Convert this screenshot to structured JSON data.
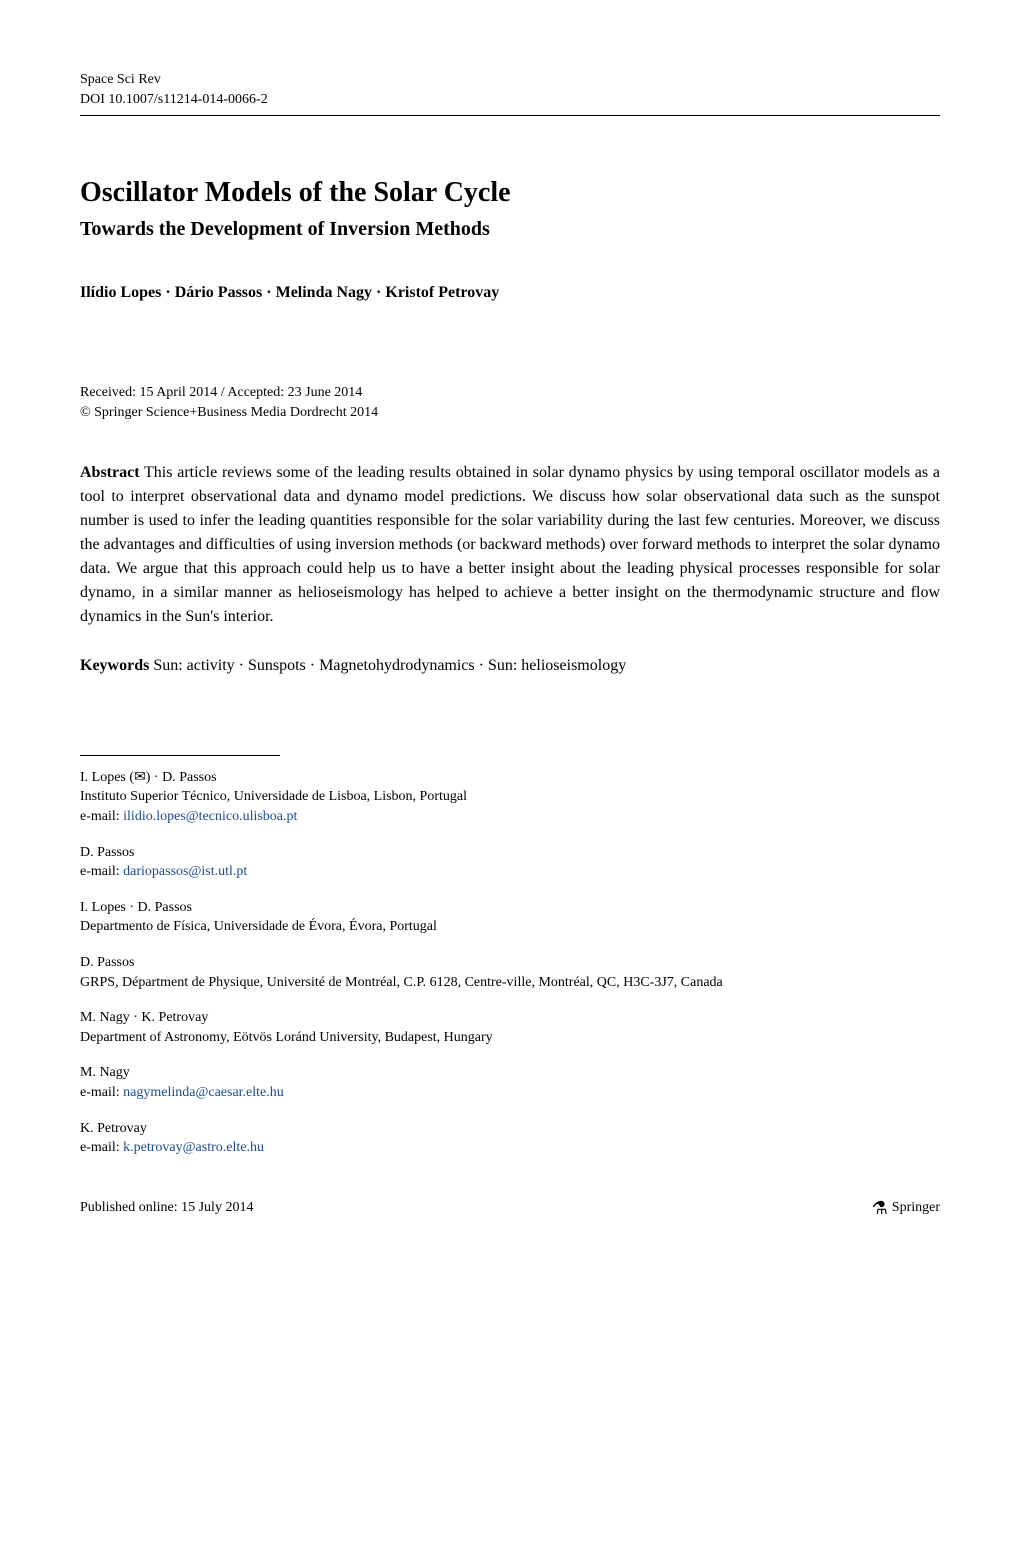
{
  "header": {
    "journal": "Space Sci Rev",
    "doi": "DOI 10.1007/s11214-014-0066-2"
  },
  "title": "Oscillator Models of the Solar Cycle",
  "subtitle": "Towards the Development of Inversion Methods",
  "authors": "Ilídio Lopes · Dário Passos · Melinda Nagy · Kristof Petrovay",
  "dates": "Received: 15 April 2014 / Accepted: 23 June 2014",
  "copyright": "© Springer Science+Business Media Dordrecht 2014",
  "abstract_label": "Abstract",
  "abstract": "This article reviews some of the leading results obtained in solar dynamo physics by using temporal oscillator models as a tool to interpret observational data and dynamo model predictions. We discuss how solar observational data such as the sunspot number is used to infer the leading quantities responsible for the solar variability during the last few centuries. Moreover, we discuss the advantages and difficulties of using inversion methods (or backward methods) over forward methods to interpret the solar dynamo data. We argue that this approach could help us to have a better insight about the leading physical processes responsible for solar dynamo, in a similar manner as helioseismology has helped to achieve a better insight on the thermodynamic structure and flow dynamics in the Sun's interior.",
  "keywords_label": "Keywords",
  "keywords": "Sun: activity · Sunspots · Magnetohydrodynamics · Sun: helioseismology",
  "affiliations": {
    "block1": {
      "names": "I. Lopes (✉) · D. Passos",
      "affil": "Instituto Superior Técnico, Universidade de Lisboa, Lisbon, Portugal",
      "email_label": "e-mail: ",
      "email": "ilidio.lopes@tecnico.ulisboa.pt"
    },
    "block2": {
      "names": "D. Passos",
      "email_label": "e-mail: ",
      "email": "dariopassos@ist.utl.pt"
    },
    "block3": {
      "names": "I. Lopes · D. Passos",
      "affil": "Departmento de Física, Universidade de Évora, Évora, Portugal"
    },
    "block4": {
      "names": "D. Passos",
      "affil": "GRPS, Départment de Physique, Université de Montréal, C.P. 6128, Centre-ville, Montréal, QC, H3C-3J7, Canada"
    },
    "block5": {
      "names": "M. Nagy · K. Petrovay",
      "affil": "Department of Astronomy, Eötvös Loránd University, Budapest, Hungary"
    },
    "block6": {
      "names": "M. Nagy",
      "email_label": "e-mail: ",
      "email": "nagymelinda@caesar.elte.hu"
    },
    "block7": {
      "names": "K. Petrovay",
      "email_label": "e-mail: ",
      "email": "k.petrovay@astro.elte.hu"
    }
  },
  "footer": {
    "published": "Published online: 15 July 2014",
    "publisher": "Springer"
  }
}
